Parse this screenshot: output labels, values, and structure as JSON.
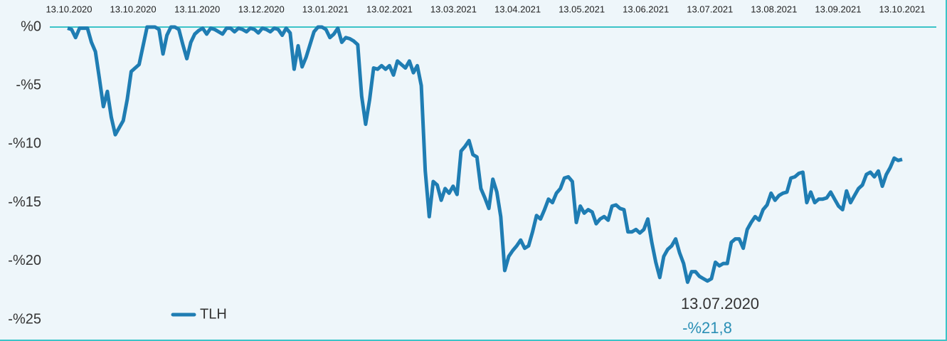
{
  "chart_data": {
    "type": "line",
    "xtick_labels": [
      "13.10.2020",
      "13.10.2020",
      "13.11.2020",
      "13.12.2020",
      "13.01.2021",
      "13.02.2021",
      "13.03.2021",
      "13.04.2021",
      "13.05.2021",
      "13.06.2021",
      "13.07.2021",
      "13.08.2021",
      "13.09.2021",
      "13.10.2021"
    ],
    "ylim": [
      -25,
      0
    ],
    "yticks": [
      {
        "value": 0,
        "label": "%0"
      },
      {
        "value": -5,
        "label": "-%5"
      },
      {
        "value": -10,
        "label": "-%10"
      },
      {
        "value": -15,
        "label": "-%15"
      },
      {
        "value": -20,
        "label": "-%20"
      },
      {
        "value": -25,
        "label": "-%25"
      }
    ],
    "zero_line_color": "#3cc4c8",
    "legend": "lower left",
    "series": [
      {
        "name": "TLH",
        "color": "#1f7db3",
        "values": [
          -0.1,
          -0.2,
          -0.9,
          -0.1,
          -0.1,
          -0.1,
          -1.3,
          -2.1,
          -4.4,
          -6.8,
          -5.5,
          -7.7,
          -9.2,
          -8.6,
          -8.0,
          -6.2,
          -3.8,
          -3.5,
          -3.2,
          -1.6,
          0,
          0,
          0,
          -0.2,
          -2.3,
          -0.7,
          0,
          0,
          -0.2,
          -1.5,
          -2.7,
          -1.3,
          -0.6,
          -0.3,
          -0.1,
          -0.6,
          -0.1,
          -0.2,
          -0.4,
          -0.6,
          -0.1,
          -0.1,
          -0.4,
          -0.1,
          -0.2,
          -0.4,
          -0.1,
          -0.2,
          -0.5,
          -0.1,
          -0.2,
          -0.4,
          -0.1,
          -0.2,
          -0.7,
          -0.1,
          -0.5,
          -3.6,
          -1.6,
          -3.4,
          -2.6,
          -1.5,
          -0.4,
          0,
          0,
          -0.2,
          -0.9,
          -0.6,
          -0.1,
          -1.3,
          -0.9,
          -1.0,
          -1.2,
          -1.5,
          -5.9,
          -8.3,
          -6.2,
          -3.5,
          -3.6,
          -3.3,
          -3.6,
          -3.3,
          -4.1,
          -2.9,
          -3.2,
          -3.5,
          -2.9,
          -3.9,
          -3.3,
          -5.0,
          -12.3,
          -16.2,
          -13.2,
          -13.5,
          -14.8,
          -13.8,
          -14.2,
          -13.6,
          -14.3,
          -10.6,
          -10.2,
          -9.7,
          -10.9,
          -11.1,
          -13.8,
          -14.6,
          -15.5,
          -13.0,
          -14.1,
          -16.2,
          -20.8,
          -19.6,
          -19.1,
          -18.7,
          -18.2,
          -18.9,
          -18.7,
          -17.5,
          -16.1,
          -16.4,
          -15.6,
          -14.7,
          -15.0,
          -14.2,
          -13.8,
          -12.9,
          -12.8,
          -13.2,
          -16.7,
          -15.3,
          -15.9,
          -15.6,
          -15.8,
          -16.8,
          -16.4,
          -16.2,
          -16.5,
          -15.3,
          -15.2,
          -15.5,
          -15.6,
          -17.5,
          -17.5,
          -17.3,
          -17.6,
          -17.3,
          -16.4,
          -18.4,
          -20.1,
          -21.4,
          -19.6,
          -19.0,
          -18.7,
          -18.1,
          -19.3,
          -20.2,
          -21.8,
          -20.9,
          -20.9,
          -21.3,
          -21.5,
          -21.7,
          -21.5,
          -20.1,
          -20.4,
          -20.2,
          -20.2,
          -18.4,
          -18.1,
          -18.1,
          -18.9,
          -17.3,
          -16.7,
          -16.2,
          -16.5,
          -15.6,
          -15.2,
          -14.2,
          -14.8,
          -14.4,
          -14.2,
          -14.1,
          -12.9,
          -12.8,
          -12.5,
          -12.4,
          -15.0,
          -14.1,
          -15.0,
          -14.7,
          -14.7,
          -14.6,
          -14.1,
          -14.7,
          -15.3,
          -15.6,
          -14.0,
          -15.0,
          -14.4,
          -13.8,
          -13.5,
          -12.6,
          -12.4,
          -12.8,
          -12.3,
          -13.6,
          -12.6,
          -12.0,
          -11.2,
          -11.4,
          -11.3
        ]
      }
    ],
    "min_annotation": {
      "date": "13.07.2020",
      "value": -21.8,
      "value_label": "-%21,8"
    }
  }
}
